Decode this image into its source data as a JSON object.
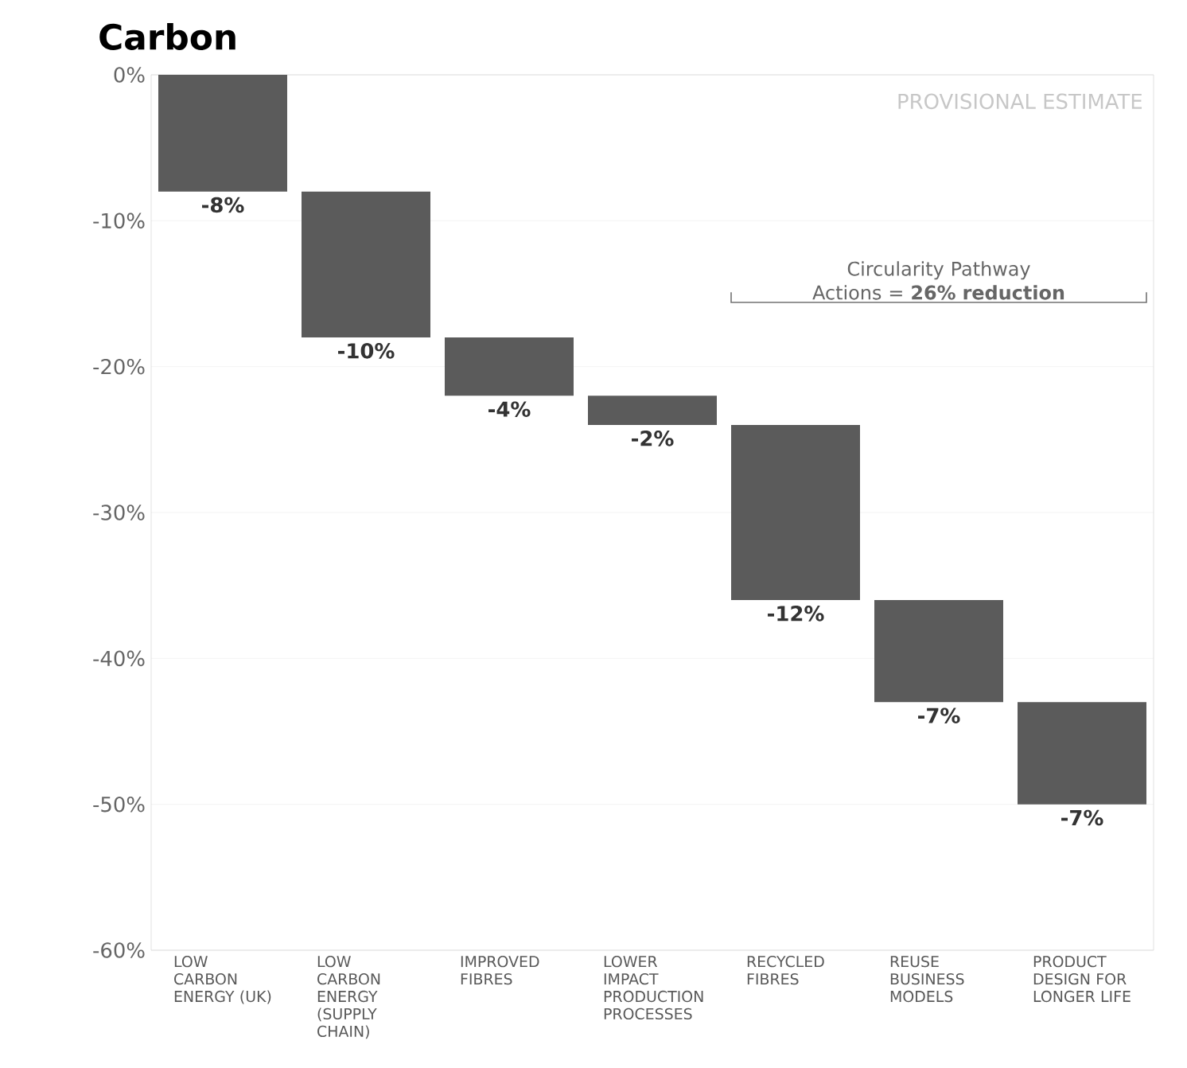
{
  "chart_data": {
    "type": "bar",
    "title": "Carbon",
    "categories": [
      "LOW CARBON ENERGY (UK)",
      "LOW CARBON ENERGY (SUPPLY CHAIN)",
      "IMPROVED FIBRES",
      "LOWER IMPACT PRODUCTION PROCESSES",
      "RECYCLED FIBRES",
      "REUSE BUSINESS MODELS",
      "PRODUCT DESIGN FOR LONGER LIFE"
    ],
    "base": [
      0,
      -8,
      -18,
      -22,
      -24,
      -36,
      -43
    ],
    "values": [
      -8,
      -10,
      -4,
      -2,
      -12,
      -7,
      -7
    ],
    "value_labels": [
      "-8%",
      "-10%",
      "-4%",
      "-2%",
      "-12%",
      "-7%",
      "-7%"
    ],
    "color": "#5b5b5b",
    "ylim": [
      -60,
      0
    ],
    "yticks": [
      {
        "value": 0,
        "label": "0%"
      },
      {
        "value": -10,
        "label": "-10%"
      },
      {
        "value": -20,
        "label": "-20%"
      },
      {
        "value": -30,
        "label": "-30%"
      },
      {
        "value": -40,
        "label": "-40%"
      },
      {
        "value": -50,
        "label": "-50%"
      },
      {
        "value": -60,
        "label": "-60%"
      }
    ],
    "grid": "y",
    "annotations": [
      "PROVISIONAL ESTIMATE",
      "Circularity Pathway Actions = **26% reduction**"
    ]
  }
}
